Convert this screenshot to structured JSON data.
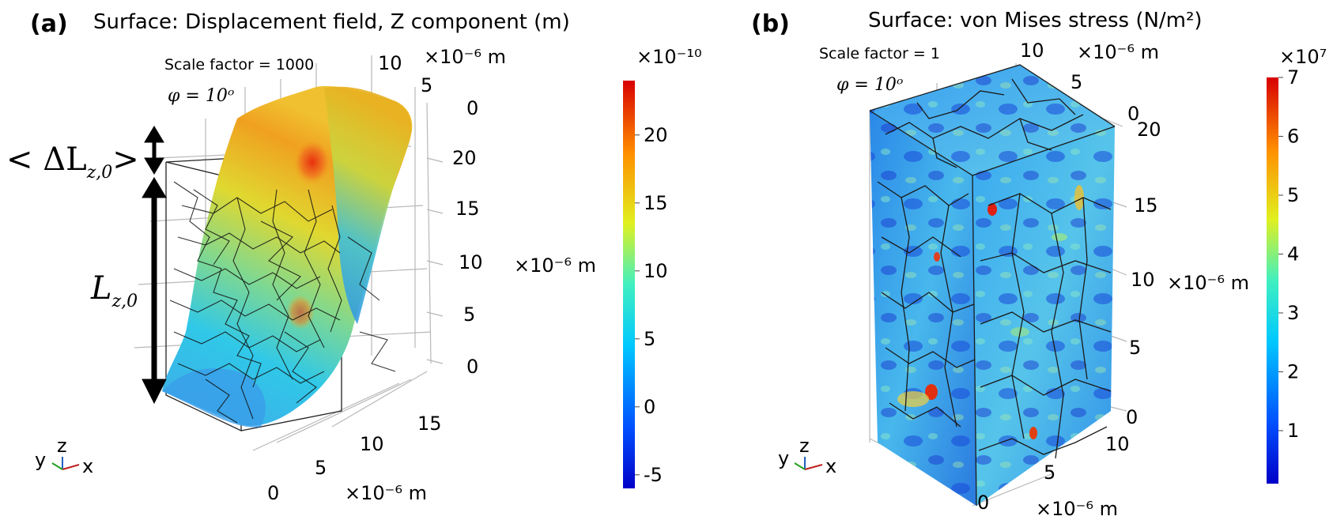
{
  "panel_a": {
    "label": "(a)",
    "title": "Surface: Displacement field, Z component (m)",
    "scale_factor": "Scale factor = 1000",
    "phi": "φ = 10ᵒ",
    "delta_label": "< ΔL",
    "delta_sub": "z,0",
    "delta_close": ">",
    "length_label": "L",
    "length_sub": "z,0",
    "top_axis_ticks": [
      "10",
      "5",
      "0"
    ],
    "top_axis_unit": "×10⁻⁶ m",
    "right_axis_ticks": [
      "20",
      "15",
      "10",
      "5",
      "0"
    ],
    "right_axis_unit": "×10⁻⁶ m",
    "bottom_axis_ticks": [
      "0",
      "5",
      "10",
      "15"
    ],
    "bottom_axis_unit": "×10⁻⁶ m",
    "colorbar": {
      "multiplier": "×10⁻¹⁰",
      "ticks": [
        "20",
        "15",
        "10",
        "5",
        "0",
        "-5"
      ],
      "min": -6,
      "max": 24
    },
    "triad": {
      "x": "x",
      "y": "y",
      "z": "z"
    }
  },
  "panel_b": {
    "label": "(b)",
    "title": "Surface: von Mises stress (N/m²)",
    "scale_factor": "Scale factor = 1",
    "phi": "φ = 10ᵒ",
    "top_axis_ticks": [
      "10",
      "5",
      "0"
    ],
    "top_axis_unit": "×10⁻⁶ m",
    "right_axis_ticks": [
      "20",
      "15",
      "10",
      "5",
      "0"
    ],
    "right_axis_unit": "×10⁻⁶ m",
    "bottom_axis_ticks": [
      "0",
      "5",
      "10"
    ],
    "bottom_axis_unit": "×10⁻⁶ m",
    "colorbar": {
      "multiplier": "×10⁷",
      "ticks": [
        "7",
        "6",
        "5",
        "4",
        "3",
        "2",
        "1"
      ],
      "min": 0.1,
      "max": 7
    },
    "triad": {
      "x": "x",
      "y": "y",
      "z": "z"
    }
  },
  "colors": {
    "jet_blue": "#1030e0",
    "jet_cyan": "#20c8f0",
    "jet_yellow": "#f0e020",
    "jet_red": "#e01010"
  }
}
